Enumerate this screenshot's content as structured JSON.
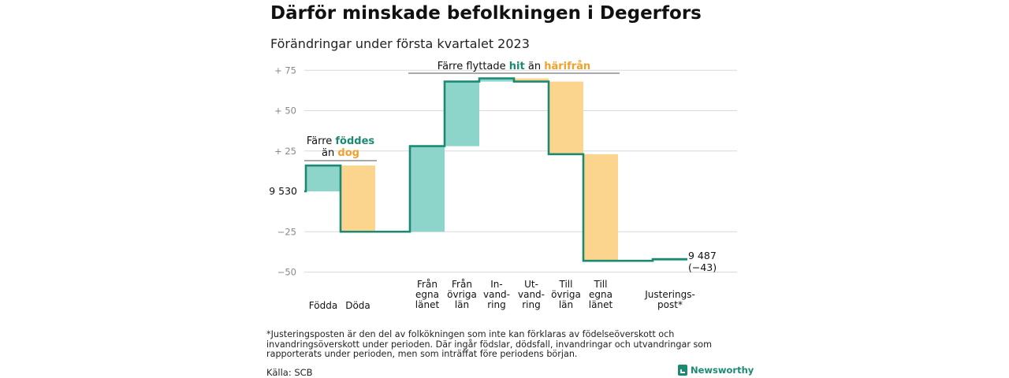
{
  "header": {
    "title": "Därför minskade befolkningen i Degerfors",
    "subtitle": "Förändringar under första kvartalet 2023"
  },
  "chart_data": {
    "type": "waterfall",
    "y_ticks": [
      {
        "value": 75,
        "label": "+ 75"
      },
      {
        "value": 50,
        "label": "+ 50"
      },
      {
        "value": 25,
        "label": "+ 25"
      },
      {
        "value": -25,
        "label": "−25"
      },
      {
        "value": -50,
        "label": "−50"
      }
    ],
    "ylim": [
      -55,
      85
    ],
    "start": {
      "value": 0,
      "label": "9 530"
    },
    "end": {
      "value": -43,
      "label_line1": "9 487",
      "label_line2": "(−43)"
    },
    "steps": [
      {
        "label": [
          "Födda"
        ],
        "change": 16,
        "kind": "in"
      },
      {
        "label": [
          "Döda"
        ],
        "change": -41,
        "kind": "out"
      },
      {
        "label": [],
        "change": 0,
        "kind": "gap"
      },
      {
        "label": [
          "Från",
          "egna",
          "länet"
        ],
        "change": 53,
        "kind": "in"
      },
      {
        "label": [
          "Från",
          "övriga",
          "län"
        ],
        "change": 40,
        "kind": "in"
      },
      {
        "label": [
          "In-",
          "vand-",
          "ring"
        ],
        "change": 2,
        "kind": "in"
      },
      {
        "label": [
          "Ut-",
          "vand-",
          "ring"
        ],
        "change": -2,
        "kind": "out"
      },
      {
        "label": [
          "Till",
          "övriga",
          "län"
        ],
        "change": -45,
        "kind": "out"
      },
      {
        "label": [
          "Till",
          "egna",
          "länet"
        ],
        "change": -66,
        "kind": "out"
      },
      {
        "label": [],
        "change": 0,
        "kind": "gap"
      },
      {
        "label": [
          "Justerings-",
          "post*"
        ],
        "change": 1,
        "kind": "in"
      }
    ],
    "annotations": {
      "births": {
        "line1": "Färre",
        "word1": "föddes",
        "line2": "än",
        "word2": "dog"
      },
      "migration": {
        "text1": "Färre flyttade",
        "word1": "hit",
        "text2": "än",
        "word2": "härifrån"
      }
    },
    "colors": {
      "in": "#8dd5cb",
      "out": "#fbd48e",
      "line": "#1c8a73",
      "accent_in": "#1c8a73",
      "accent_out": "#f0a12c",
      "grid": "#d9d9d9"
    }
  },
  "footer": {
    "footnote": "*Justeringsposten är den del av folkökningen som inte kan förklaras av födelseöverskott och invandringsöverskott under perioden. Där ingår födslar, dödsfall, invandringar och utvandringar som rapporterats under perioden, men som inträffat före periodens början.",
    "source": "Källa: SCB",
    "brand": "Newsworthy"
  }
}
